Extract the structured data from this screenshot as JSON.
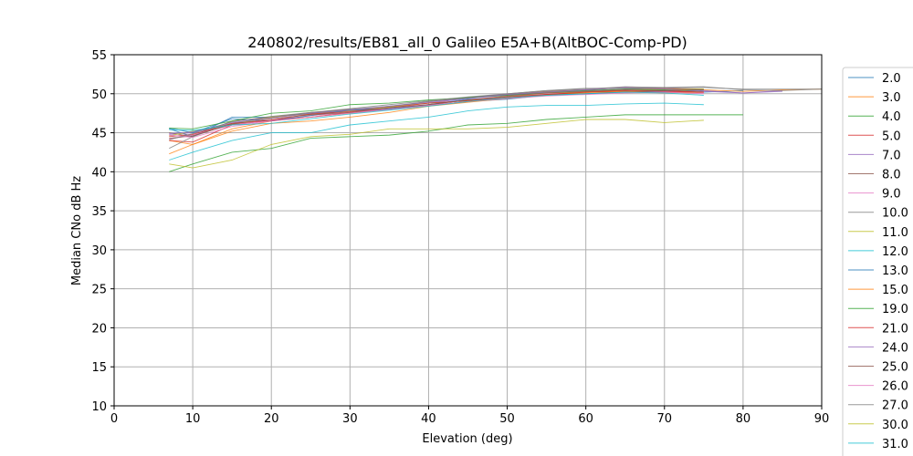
{
  "chart_data": {
    "type": "line",
    "title": "240802/results/EB81_all_0 Galileo E5A+B(AltBOC-Comp-PD)",
    "xlabel": "Elevation (deg)",
    "ylabel": "Median CNo dB Hz",
    "xlim": [
      0,
      90
    ],
    "ylim": [
      10,
      55
    ],
    "xticks": [
      "0",
      "10",
      "20",
      "30",
      "40",
      "50",
      "60",
      "70",
      "80",
      "90"
    ],
    "yticks": [
      "10",
      "15",
      "20",
      "25",
      "30",
      "35",
      "40",
      "45",
      "50",
      "55"
    ],
    "grid": true,
    "legend_placement": "right-outside",
    "x": [
      7,
      10,
      15,
      20,
      25,
      30,
      35,
      40,
      45,
      50,
      55,
      60,
      65,
      70,
      75,
      80,
      85,
      90
    ],
    "series": [
      {
        "name": "2.0",
        "color": "#1f77b4",
        "values": [
          45.5,
          44.5,
          47,
          47,
          47.5,
          47.8,
          48,
          48.5,
          49,
          49.3,
          49.8,
          50,
          50.3,
          50.2,
          50.2,
          50.4,
          null,
          null
        ]
      },
      {
        "name": "3.0",
        "color": "#ff7f0e",
        "values": [
          44,
          43.5,
          45.5,
          46.5,
          47,
          47.5,
          48,
          48.5,
          49,
          49.5,
          49.8,
          50.2,
          50.6,
          50.6,
          50.5,
          50.3,
          50.5,
          50.6
        ]
      },
      {
        "name": "4.0",
        "color": "#2ca02c",
        "values": [
          40,
          41,
          42.5,
          43,
          44.3,
          44.5,
          44.7,
          45.2,
          46,
          46.2,
          46.7,
          47,
          47.3,
          47.3,
          47.3,
          47.3,
          null,
          null
        ]
      },
      {
        "name": "5.0",
        "color": "#d62728",
        "values": [
          44,
          43.8,
          46,
          46.6,
          47,
          47.6,
          48,
          48.6,
          49.2,
          49.5,
          49.9,
          50.3,
          50.2,
          50.4,
          50.2,
          null,
          null,
          null
        ]
      },
      {
        "name": "7.0",
        "color": "#9467bd",
        "values": [
          44.8,
          45,
          46.2,
          47,
          47.4,
          47.8,
          48.4,
          48.8,
          49.4,
          49.8,
          50.1,
          50.4,
          50.6,
          50.8,
          50.4,
          50.1,
          50.4,
          null
        ]
      },
      {
        "name": "8.0",
        "color": "#8c564b",
        "values": [
          45,
          44.5,
          46.5,
          47,
          47.6,
          48,
          48.3,
          49,
          49.5,
          49.9,
          50.3,
          50.5,
          50.8,
          50.7,
          50.6,
          null,
          null,
          null
        ]
      },
      {
        "name": "9.0",
        "color": "#e377c2",
        "values": [
          44.2,
          44.7,
          46,
          46.6,
          47.2,
          47.6,
          48,
          48.5,
          49,
          49.6,
          50,
          50.3,
          50.5,
          50.3,
          50.1,
          null,
          null,
          null
        ]
      },
      {
        "name": "10.0",
        "color": "#7f7f7f",
        "values": [
          43,
          44.5,
          46.2,
          47,
          47.5,
          48,
          48.4,
          49,
          49.5,
          50,
          50.4,
          50.6,
          50.9,
          50.8,
          50.9,
          50.5,
          50.4,
          50.6
        ]
      },
      {
        "name": "11.0",
        "color": "#bcbd22",
        "values": [
          44.6,
          45.2,
          46.1,
          47,
          47.4,
          47.8,
          48.3,
          48.8,
          49.1,
          49.6,
          50.1,
          50.2,
          50.4,
          50.5,
          50.6,
          null,
          null,
          null
        ]
      },
      {
        "name": "12.0",
        "color": "#17becf",
        "values": [
          41.5,
          42.5,
          44,
          45,
          45,
          46,
          46.5,
          47,
          47.8,
          48.3,
          48.5,
          48.5,
          48.7,
          48.8,
          48.6,
          null,
          null,
          null
        ]
      },
      {
        "name": "13.0",
        "color": "#1f77b4",
        "values": [
          45.6,
          45,
          46.8,
          46.5,
          47.2,
          47.9,
          48.1,
          48.6,
          49.3,
          49.4,
          49.9,
          50,
          50.2,
          50.4,
          50.5,
          null,
          null,
          null
        ]
      },
      {
        "name": "15.0",
        "color": "#ff7f0e",
        "values": [
          42.3,
          43.5,
          45.2,
          46.2,
          46.5,
          47,
          47.6,
          48.4,
          48.9,
          49.4,
          49.9,
          50.1,
          50.3,
          50.1,
          50.2,
          null,
          null,
          null
        ]
      },
      {
        "name": "19.0",
        "color": "#2ca02c",
        "values": [
          45.6,
          45.5,
          46.5,
          47.5,
          47.8,
          48.6,
          48.8,
          49.2,
          49.5,
          49.8,
          50.2,
          50.4,
          50.6,
          50.5,
          50.3,
          null,
          null,
          null
        ]
      },
      {
        "name": "21.0",
        "color": "#d62728",
        "values": [
          44.5,
          44.8,
          46.2,
          46.6,
          47.4,
          47.7,
          48.2,
          48.8,
          49.1,
          49.6,
          49.9,
          50.2,
          50.4,
          50.3,
          50.2,
          null,
          null,
          null
        ]
      },
      {
        "name": "24.0",
        "color": "#9467bd",
        "values": [
          44.9,
          45.1,
          46.3,
          46.9,
          47.5,
          47.9,
          48.4,
          48.9,
          49.4,
          49.9,
          50.2,
          50.5,
          50.8,
          50.6,
          50.3,
          50.1,
          50.3,
          null
        ]
      },
      {
        "name": "25.0",
        "color": "#8c564b",
        "values": [
          44.3,
          44.6,
          46.1,
          46.8,
          47.3,
          47.6,
          48.2,
          48.6,
          49.2,
          49.7,
          50.1,
          50.3,
          50.5,
          50.4,
          50.5,
          null,
          null,
          null
        ]
      },
      {
        "name": "26.0",
        "color": "#e377c2",
        "values": [
          44.7,
          44.4,
          45.8,
          46.5,
          47,
          47.5,
          48,
          48.5,
          49,
          49.4,
          49.7,
          49.9,
          50.1,
          50.2,
          50,
          null,
          null,
          null
        ]
      },
      {
        "name": "27.0",
        "color": "#7f7f7f",
        "values": [
          44.1,
          44.9,
          46.4,
          47.1,
          47.6,
          48.1,
          48.6,
          49.1,
          49.6,
          50,
          50.4,
          50.7,
          50.7,
          50.8,
          50.8,
          50.6,
          50.6,
          50.6
        ]
      },
      {
        "name": "30.0",
        "color": "#bcbd22",
        "values": [
          41,
          40.5,
          41.5,
          43.5,
          44.5,
          44.8,
          45.5,
          45.5,
          45.5,
          45.7,
          46.2,
          46.7,
          46.7,
          46.3,
          46.6,
          null,
          null,
          null
        ]
      },
      {
        "name": "31.0",
        "color": "#17becf",
        "values": [
          45.4,
          45.3,
          46,
          46.2,
          46.8,
          47.4,
          47.9,
          48.4,
          49,
          49.5,
          49.8,
          50,
          50.2,
          50.1,
          49.8,
          null,
          null,
          null
        ]
      }
    ]
  }
}
